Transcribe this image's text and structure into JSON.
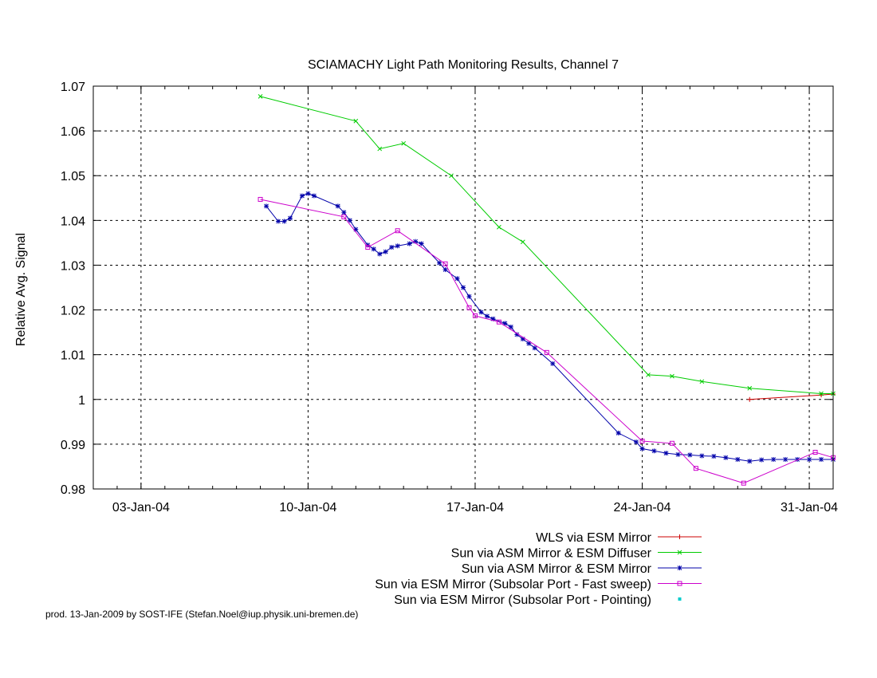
{
  "chart_data": {
    "type": "line",
    "title": "SCIAMACHY Light Path Monitoring Results, Channel 7",
    "ylabel": "Relative Avg. Signal",
    "xlabel": "",
    "x_unit": "date",
    "xlim": [
      "2004-01-01",
      "2004-02-01"
    ],
    "ylim": [
      0.98,
      1.07
    ],
    "grid": true,
    "legend_position": "bottom-right",
    "x_ticks": [
      {
        "label": "03-Jan-04",
        "date": "2004-01-03"
      },
      {
        "label": "10-Jan-04",
        "date": "2004-01-10"
      },
      {
        "label": "17-Jan-04",
        "date": "2004-01-17"
      },
      {
        "label": "24-Jan-04",
        "date": "2004-01-24"
      },
      {
        "label": "31-Jan-04",
        "date": "2004-01-31"
      }
    ],
    "y_ticks": [
      "0.98",
      "0.99",
      "1",
      "1.01",
      "1.02",
      "1.03",
      "1.04",
      "1.05",
      "1.06",
      "1.07"
    ],
    "series": [
      {
        "name": "WLS via ESM Mirror",
        "color": "#cc0000",
        "marker": "plus",
        "x": [
          "2004-01-28 12:00",
          "2004-01-31 12:00",
          "2004-02-01 00:00"
        ],
        "y": [
          1.0,
          1.001,
          1.0012
        ]
      },
      {
        "name": "Sun via ASM Mirror & ESM Diffuser",
        "color": "#00cc00",
        "marker": "x",
        "x": [
          "2004-01-08 00:00",
          "2004-01-12 00:00",
          "2004-01-13 00:00",
          "2004-01-14 00:00",
          "2004-01-16 00:00",
          "2004-01-18 00:00",
          "2004-01-19 00:00",
          "2004-01-24 06:00",
          "2004-01-25 06:00",
          "2004-01-26 12:00",
          "2004-01-28 12:00",
          "2004-01-31 12:00",
          "2004-02-01 00:00"
        ],
        "y": [
          1.0677,
          1.0622,
          1.056,
          1.0572,
          1.05,
          1.0385,
          1.0352,
          1.0055,
          1.0052,
          1.004,
          1.0025,
          1.0013,
          1.0013
        ]
      },
      {
        "name": "Sun via ASM Mirror & ESM Mirror",
        "color": "#0000aa",
        "marker": "star",
        "x": [
          "2004-01-08 06:00",
          "2004-01-08 18:00",
          "2004-01-09 00:00",
          "2004-01-09 06:00",
          "2004-01-09 18:00",
          "2004-01-10 00:00",
          "2004-01-10 06:00",
          "2004-01-11 06:00",
          "2004-01-11 12:00",
          "2004-01-11 18:00",
          "2004-01-12 00:00",
          "2004-01-12 12:00",
          "2004-01-12 18:00",
          "2004-01-13 00:00",
          "2004-01-13 06:00",
          "2004-01-13 12:00",
          "2004-01-13 18:00",
          "2004-01-14 06:00",
          "2004-01-14 12:00",
          "2004-01-14 18:00",
          "2004-01-15 12:00",
          "2004-01-15 18:00",
          "2004-01-16 06:00",
          "2004-01-16 12:00",
          "2004-01-16 18:00",
          "2004-01-17 06:00",
          "2004-01-17 12:00",
          "2004-01-17 18:00",
          "2004-01-18 06:00",
          "2004-01-18 12:00",
          "2004-01-18 18:00",
          "2004-01-19 00:00",
          "2004-01-19 06:00",
          "2004-01-19 12:00",
          "2004-01-20 06:00",
          "2004-01-23 00:00",
          "2004-01-23 18:00",
          "2004-01-24 00:00",
          "2004-01-24 12:00",
          "2004-01-25 00:00",
          "2004-01-25 12:00",
          "2004-01-26 00:00",
          "2004-01-26 12:00",
          "2004-01-27 00:00",
          "2004-01-27 12:00",
          "2004-01-28 00:00",
          "2004-01-28 12:00",
          "2004-01-29 00:00",
          "2004-01-29 12:00",
          "2004-01-30 00:00",
          "2004-01-30 12:00",
          "2004-01-31 00:00",
          "2004-01-31 12:00",
          "2004-02-01 00:00"
        ],
        "y": [
          1.0432,
          1.0398,
          1.0398,
          1.0405,
          1.0455,
          1.046,
          1.0455,
          1.0432,
          1.0418,
          1.04,
          1.038,
          1.0345,
          1.0336,
          1.0325,
          1.033,
          1.034,
          1.0343,
          1.0348,
          1.0353,
          1.0348,
          1.0305,
          1.029,
          1.027,
          1.025,
          1.023,
          1.0195,
          1.0186,
          1.018,
          1.017,
          1.0162,
          1.0145,
          1.0135,
          1.0125,
          1.0115,
          1.008,
          0.9925,
          0.9905,
          0.989,
          0.9885,
          0.988,
          0.9877,
          0.9876,
          0.9874,
          0.9873,
          0.987,
          0.9866,
          0.9862,
          0.9865,
          0.9866,
          0.9866,
          0.9866,
          0.9866,
          0.9866,
          0.9866
        ]
      },
      {
        "name": "Sun via ESM Mirror (Subsolar Port - Fast sweep)",
        "color": "#cc00cc",
        "marker": "square",
        "x": [
          "2004-01-08 00:00",
          "2004-01-11 12:00",
          "2004-01-12 12:00",
          "2004-01-13 18:00",
          "2004-01-15 18:00",
          "2004-01-16 18:00",
          "2004-01-17 00:00",
          "2004-01-18 00:00",
          "2004-01-20 00:00",
          "2004-01-24 00:00",
          "2004-01-25 06:00",
          "2004-01-26 06:00",
          "2004-01-28 06:00",
          "2004-01-31 06:00",
          "2004-02-01 00:00"
        ],
        "y": [
          1.0447,
          1.0408,
          1.034,
          1.0377,
          1.0303,
          1.0205,
          1.0187,
          1.0173,
          1.0105,
          0.9907,
          0.9902,
          0.9846,
          0.9813,
          0.9882,
          0.987
        ]
      },
      {
        "name": "Sun via ESM Mirror (Subsolar Port - Pointing)",
        "color": "#00cccc",
        "marker": "dot",
        "x": [],
        "y": []
      }
    ]
  },
  "footer": "prod. 13-Jan-2009 by SOST-IFE (Stefan.Noel@iup.physik.uni-bremen.de)"
}
